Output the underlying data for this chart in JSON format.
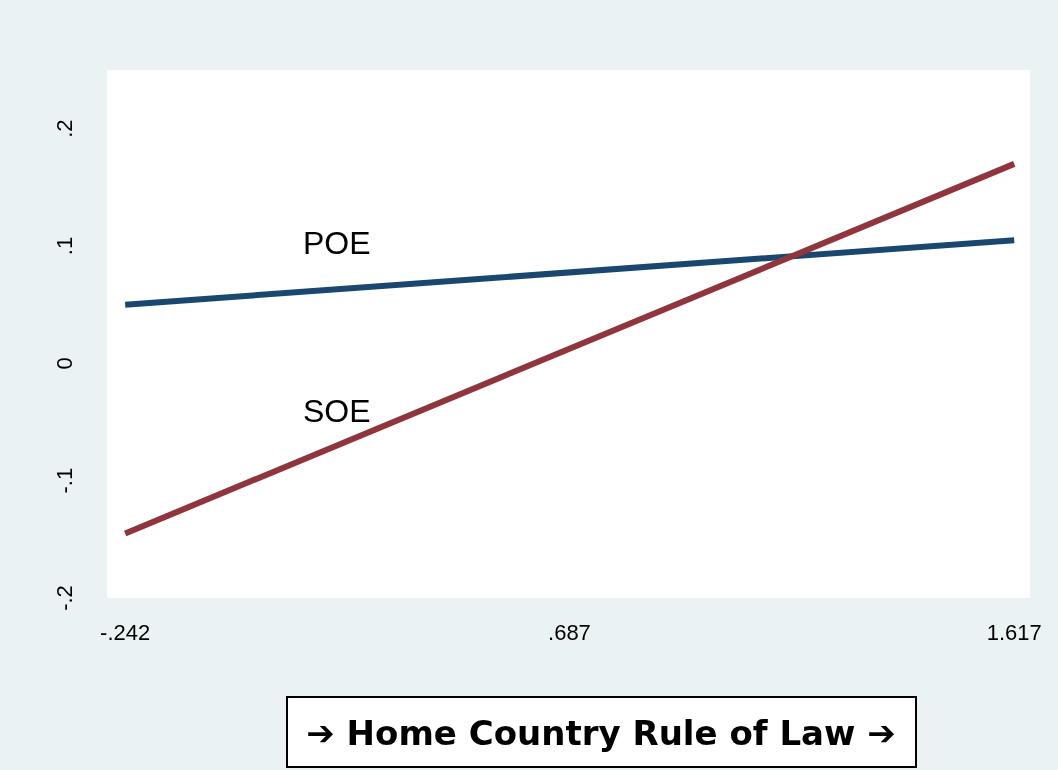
{
  "chart_data": {
    "type": "line",
    "xlabel": "➔ Home Country Rule of Law ➔",
    "x": [
      -0.242,
      1.617
    ],
    "series": [
      {
        "name": "POE",
        "color": "#1a476f",
        "values": [
          0.05,
          0.105
        ]
      },
      {
        "name": "SOE",
        "color": "#90353b",
        "values": [
          -0.145,
          0.17
        ]
      }
    ],
    "xlim": [
      -0.28,
      1.65
    ],
    "xticks": [
      {
        "value": -0.242,
        "label": "-.242"
      },
      {
        "value": 0.687,
        "label": ".687"
      },
      1.617
    ],
    "ylim": [
      -0.2,
      0.25
    ],
    "yticks": [
      {
        "value": -0.2,
        "label": "-.2"
      },
      {
        "value": -0.1,
        "label": "-.1"
      },
      0,
      {
        "value": 0.1,
        "label": ".1"
      },
      {
        "value": 0.2,
        "label": ".2"
      }
    ],
    "grid": false,
    "line_style": "solid"
  }
}
